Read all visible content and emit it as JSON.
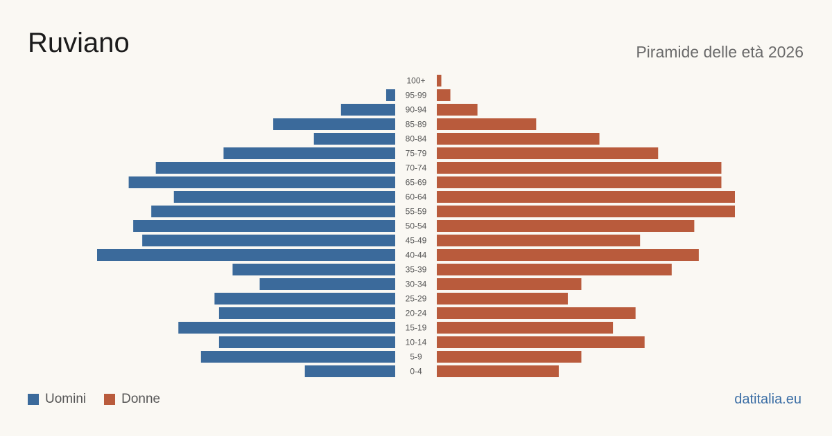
{
  "header": {
    "title": "Ruviano",
    "subtitle": "Piramide delle età 2026"
  },
  "legend": {
    "men_label": "Uomini",
    "women_label": "Donne"
  },
  "footer": {
    "source": "datitalia.eu"
  },
  "colors": {
    "men": "#3b6a9b",
    "women": "#b95b3c"
  },
  "chart_data": {
    "type": "bar",
    "orientation": "horizontal-population-pyramid",
    "categories": [
      "100+",
      "95-99",
      "90-94",
      "85-89",
      "80-84",
      "75-79",
      "70-74",
      "65-69",
      "60-64",
      "55-59",
      "50-54",
      "45-49",
      "40-44",
      "35-39",
      "30-34",
      "25-29",
      "20-24",
      "15-19",
      "10-14",
      "5-9",
      "0-4"
    ],
    "series": [
      {
        "name": "Uomini",
        "values": [
          0,
          2,
          12,
          27,
          18,
          38,
          53,
          59,
          49,
          54,
          58,
          56,
          66,
          36,
          30,
          40,
          39,
          48,
          39,
          43,
          20
        ]
      },
      {
        "name": "Donne",
        "values": [
          1,
          3,
          9,
          22,
          36,
          49,
          63,
          63,
          66,
          66,
          57,
          45,
          58,
          52,
          32,
          29,
          44,
          39,
          46,
          32,
          27
        ]
      }
    ]
  }
}
